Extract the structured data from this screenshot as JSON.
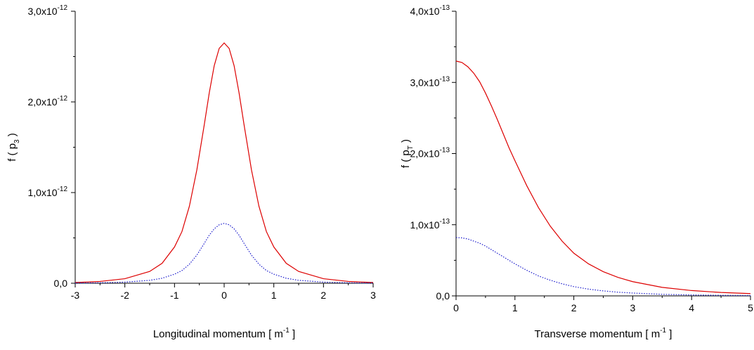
{
  "chart_data": [
    {
      "type": "line",
      "xlabel": "Longitudinal momentum [ m",
      "xlabel_sup": "-1",
      "xlabel_end": " ]",
      "ylabel_main": "f ( p",
      "ylabel_sub": "3",
      "ylabel_end": " )",
      "xlim": [
        -3,
        3
      ],
      "ylim": [
        0,
        3e-12
      ],
      "x_ticks": [
        -3,
        -2,
        -1,
        0,
        1,
        2,
        3
      ],
      "x_tick_labels": [
        "-3",
        "-2",
        "-1",
        "0",
        "1",
        "2",
        "3"
      ],
      "y_ticks": [
        0,
        1e-12,
        2e-12,
        3e-12
      ],
      "y_tick_labels": [
        {
          "base": "0,0",
          "exp": ""
        },
        {
          "base": "1,0x10",
          "exp": "-12"
        },
        {
          "base": "2,0x10",
          "exp": "-12"
        },
        {
          "base": "3,0x10",
          "exp": "-12"
        }
      ],
      "series": [
        {
          "color": "#dd0000",
          "style": "solid",
          "x": [
            -3.0,
            -2.5,
            -2.0,
            -1.5,
            -1.25,
            -1.0,
            -0.85,
            -0.7,
            -0.55,
            -0.4,
            -0.3,
            -0.2,
            -0.1,
            0.0,
            0.1,
            0.2,
            0.3,
            0.4,
            0.55,
            0.7,
            0.85,
            1.0,
            1.25,
            1.5,
            2.0,
            2.5,
            3.0
          ],
          "y": [
            8e-15,
            2e-14,
            5e-14,
            1.3e-13,
            2.2e-13,
            4e-13,
            5.7e-13,
            8.5e-13,
            1.25e-12,
            1.75e-12,
            2.1e-12,
            2.4e-12,
            2.59e-12,
            2.65e-12,
            2.59e-12,
            2.4e-12,
            2.1e-12,
            1.75e-12,
            1.25e-12,
            8.5e-13,
            5.7e-13,
            4e-13,
            2.2e-13,
            1.3e-13,
            5e-14,
            2e-14,
            8e-15
          ]
        },
        {
          "color": "#1a1acc",
          "style": "dotted",
          "x": [
            -3.0,
            -2.5,
            -2.0,
            -1.5,
            -1.25,
            -1.0,
            -0.85,
            -0.7,
            -0.55,
            -0.4,
            -0.3,
            -0.2,
            -0.1,
            0.0,
            0.1,
            0.2,
            0.3,
            0.4,
            0.55,
            0.7,
            0.85,
            1.0,
            1.25,
            1.5,
            2.0,
            2.5,
            3.0
          ],
          "y": [
            2e-15,
            5e-15,
            1.2e-14,
            3.2e-14,
            5.5e-14,
            1e-13,
            1.4e-13,
            2.1e-13,
            3.1e-13,
            4.4e-13,
            5.3e-13,
            6e-13,
            6.45e-13,
            6.6e-13,
            6.45e-13,
            6e-13,
            5.3e-13,
            4.4e-13,
            3.1e-13,
            2.1e-13,
            1.4e-13,
            1e-13,
            5.5e-14,
            3.2e-14,
            1.2e-14,
            5e-15,
            2e-15
          ]
        }
      ]
    },
    {
      "type": "line",
      "xlabel": "Transverse momentum [ m",
      "xlabel_sup": "-1",
      "xlabel_end": " ]",
      "ylabel_main": "f ( p",
      "ylabel_sub": "T",
      "ylabel_end": " )",
      "xlim": [
        0,
        5
      ],
      "ylim": [
        0,
        4e-13
      ],
      "x_ticks": [
        0,
        1,
        2,
        3,
        4,
        5
      ],
      "x_tick_labels": [
        "0",
        "1",
        "2",
        "3",
        "4",
        "5"
      ],
      "y_ticks": [
        0,
        1e-13,
        2e-13,
        3e-13,
        4e-13
      ],
      "y_tick_labels": [
        {
          "base": "0,0",
          "exp": ""
        },
        {
          "base": "1,0x10",
          "exp": "-13"
        },
        {
          "base": "2,0x10",
          "exp": "-13"
        },
        {
          "base": "3,0x10",
          "exp": "-13"
        },
        {
          "base": "4,0x10",
          "exp": "-13"
        }
      ],
      "series": [
        {
          "color": "#dd0000",
          "style": "solid",
          "x": [
            0.0,
            0.1,
            0.2,
            0.3,
            0.4,
            0.5,
            0.6,
            0.7,
            0.8,
            0.9,
            1.0,
            1.2,
            1.4,
            1.6,
            1.8,
            2.0,
            2.25,
            2.5,
            2.75,
            3.0,
            3.5,
            4.0,
            4.5,
            5.0
          ],
          "y": [
            3.3e-13,
            3.28e-13,
            3.22e-13,
            3.13e-13,
            3.01e-13,
            2.85e-13,
            2.67e-13,
            2.48e-13,
            2.28e-13,
            2.08e-13,
            1.9e-13,
            1.55e-13,
            1.24e-13,
            9.8e-14,
            7.7e-14,
            6e-14,
            4.5e-14,
            3.4e-14,
            2.6e-14,
            2e-14,
            1.2e-14,
            7.5e-15,
            4.8e-15,
            3.2e-15
          ]
        },
        {
          "color": "#1a1acc",
          "style": "dotted",
          "x": [
            0.0,
            0.1,
            0.2,
            0.3,
            0.4,
            0.5,
            0.6,
            0.7,
            0.8,
            0.9,
            1.0,
            1.2,
            1.4,
            1.6,
            1.8,
            2.0,
            2.25,
            2.5,
            2.75,
            3.0,
            3.5,
            4.0,
            4.5,
            5.0
          ],
          "y": [
            8.2e-14,
            8.15e-14,
            8e-14,
            7.7e-14,
            7.4e-14,
            7e-14,
            6.5e-14,
            6e-14,
            5.5e-14,
            5e-14,
            4.5e-14,
            3.6e-14,
            2.8e-14,
            2.2e-14,
            1.7e-14,
            1.3e-14,
            9.5e-15,
            7e-15,
            5.2e-15,
            4e-15,
            2.2e-15,
            1.3e-15,
            8e-16,
            5e-16
          ]
        }
      ]
    }
  ]
}
